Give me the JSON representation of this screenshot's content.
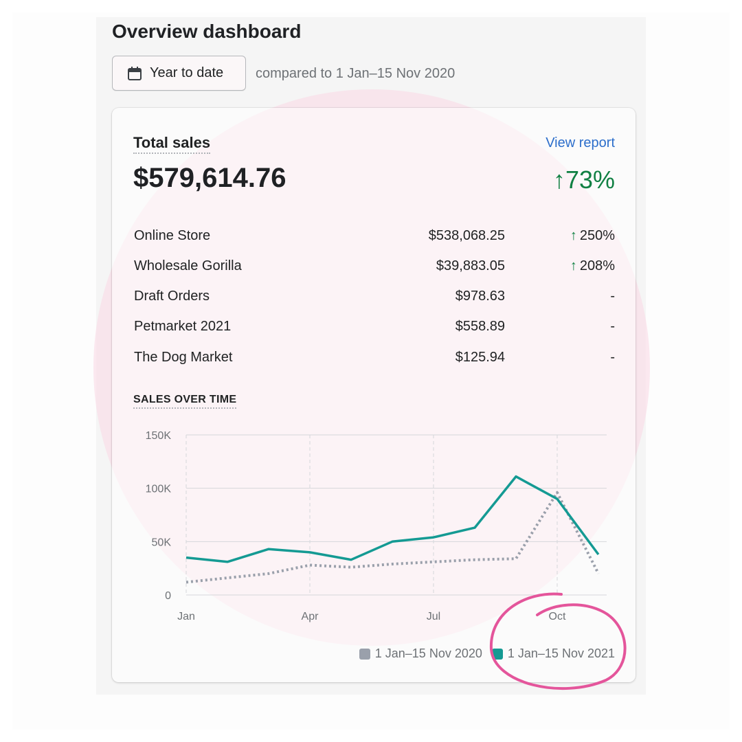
{
  "header": {
    "title": "Overview dashboard",
    "date_button_label": "Year to date",
    "compare_text": "compared to 1 Jan–15 Nov 2020"
  },
  "card": {
    "title": "Total sales",
    "view_report_label": "View report",
    "total_value": "$579,614.76",
    "total_change": "↑73%",
    "channels": [
      {
        "name": "Online Store",
        "amount": "$538,068.25",
        "change": "250%",
        "trend": "up"
      },
      {
        "name": "Wholesale Gorilla",
        "amount": "$39,883.05",
        "change": "208%",
        "trend": "up"
      },
      {
        "name": "Draft Orders",
        "amount": "$978.63",
        "change": "-",
        "trend": "none"
      },
      {
        "name": "Petmarket 2021",
        "amount": "$558.89",
        "change": "-",
        "trend": "none"
      },
      {
        "name": "The Dog Market",
        "amount": "$125.94",
        "change": "-",
        "trend": "none"
      }
    ],
    "section_title": "SALES OVER TIME"
  },
  "colors": {
    "current_series": "#149a93",
    "previous_series": "#9aa0ab",
    "positive": "#108043",
    "link": "#2c6ecb",
    "highlight": "#e4559b"
  },
  "chart_data": {
    "type": "line",
    "title": "SALES OVER TIME",
    "y_ticks": [
      "0",
      "50K",
      "100K",
      "150K"
    ],
    "y_tick_values": [
      0,
      50000,
      100000,
      150000
    ],
    "ylim": [
      0,
      150000
    ],
    "x_tick_labels": [
      {
        "label": "Jan",
        "month_index": 0
      },
      {
        "label": "Apr",
        "month_index": 3
      },
      {
        "label": "Jul",
        "month_index": 6
      },
      {
        "label": "Oct",
        "month_index": 9
      }
    ],
    "x_month_range": [
      0,
      10.2
    ],
    "grid": true,
    "legend_position": "bottom-right",
    "series": [
      {
        "name": "1 Jan–15 Nov 2020",
        "style": "dotted",
        "color": "#9aa0ab",
        "points": [
          [
            0,
            12000
          ],
          [
            1,
            16000
          ],
          [
            2,
            20000
          ],
          [
            3,
            28000
          ],
          [
            4,
            26000
          ],
          [
            5,
            29000
          ],
          [
            6,
            31000
          ],
          [
            7,
            33000
          ],
          [
            8,
            34000
          ],
          [
            9,
            96000
          ],
          [
            10,
            20000
          ]
        ]
      },
      {
        "name": "1 Jan–15 Nov 2021",
        "style": "solid",
        "color": "#149a93",
        "points": [
          [
            0,
            35000
          ],
          [
            1,
            31000
          ],
          [
            2,
            43000
          ],
          [
            3,
            40000
          ],
          [
            4,
            33000
          ],
          [
            5,
            50000
          ],
          [
            6,
            54000
          ],
          [
            7,
            63000
          ],
          [
            8,
            111000
          ],
          [
            9,
            90000
          ],
          [
            10,
            38000
          ]
        ]
      }
    ]
  }
}
